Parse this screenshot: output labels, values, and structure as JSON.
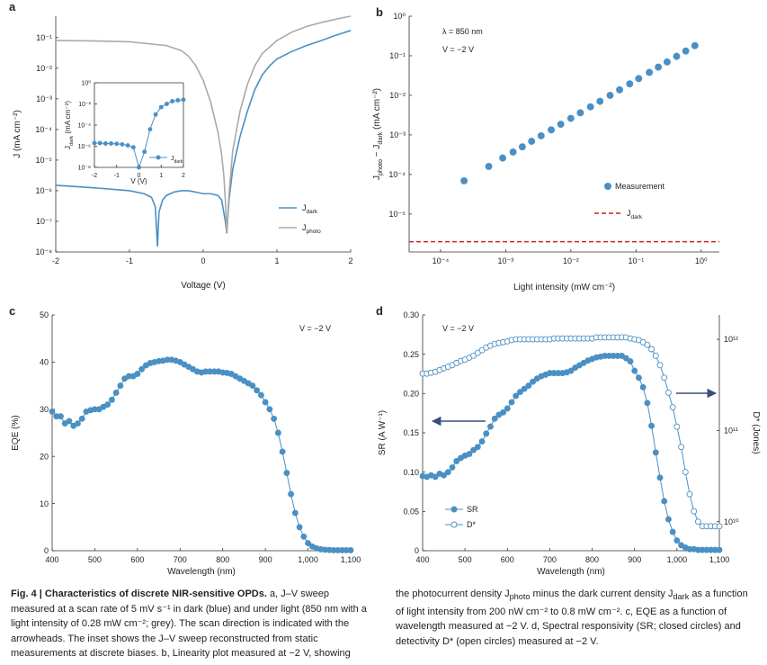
{
  "chart_data": [
    {
      "type": "line",
      "panel_label": "a",
      "xlabel": "Voltage (V)",
      "ylabel": "J (mA cm⁻²)",
      "xlim": [
        -2,
        2
      ],
      "xticks": [
        -2,
        -1,
        0,
        1,
        2
      ],
      "yscale": "log",
      "ylim": [
        1e-08,
        0.5
      ],
      "yticks": [
        {
          "value": 1e-08,
          "label": "10⁻⁸"
        },
        {
          "value": 1e-07,
          "label": "10⁻⁷"
        },
        {
          "value": 1e-06,
          "label": "10⁻⁶"
        },
        {
          "value": 1e-05,
          "label": "10⁻⁵"
        },
        {
          "value": 0.0001,
          "label": "10⁻⁴"
        },
        {
          "value": 0.001,
          "label": "10⁻³"
        },
        {
          "value": 0.01,
          "label": "10⁻²"
        },
        {
          "value": 0.1,
          "label": "10⁻¹"
        }
      ],
      "series": [
        {
          "name": [
            "J",
            "dark"
          ],
          "color": "#4a90c4",
          "x": [
            -2,
            -1.8,
            -1.6,
            -1.4,
            -1.2,
            -1,
            -0.8,
            -0.7,
            -0.65,
            -0.62,
            -0.6,
            -0.55,
            -0.5,
            -0.4,
            -0.3,
            -0.2,
            -0.1,
            0,
            0.1,
            0.2,
            0.25,
            0.3,
            0.32,
            0.35,
            0.4,
            0.5,
            0.6,
            0.7,
            0.8,
            0.9,
            1,
            1.2,
            1.4,
            1.6,
            1.8,
            2
          ],
          "values": [
            1.5e-06,
            1.4e-06,
            1.3e-06,
            1.2e-06,
            1.1e-06,
            1e-06,
            8e-07,
            6e-07,
            3e-07,
            1.5e-08,
            2e-07,
            5e-07,
            7e-07,
            9e-07,
            1e-06,
            1e-06,
            9e-07,
            8e-07,
            8e-07,
            7e-07,
            5e-07,
            1e-07,
            4e-08,
            5e-07,
            5e-06,
            6e-05,
            0.0004,
            0.002,
            0.006,
            0.012,
            0.02,
            0.035,
            0.055,
            0.08,
            0.12,
            0.17
          ]
        },
        {
          "name": [
            "J",
            "photo"
          ],
          "color": "#aaaaaa",
          "x": [
            -2,
            -1.5,
            -1,
            -0.5,
            -0.3,
            -0.2,
            -0.1,
            0,
            0.1,
            0.2,
            0.25,
            0.28,
            0.3,
            0.32,
            0.35,
            0.4,
            0.5,
            0.6,
            0.7,
            0.8,
            1,
            1.2,
            1.4,
            1.6,
            1.8,
            2
          ],
          "values": [
            0.08,
            0.078,
            0.073,
            0.055,
            0.038,
            0.025,
            0.012,
            0.004,
            0.0008,
            8e-05,
            1.5e-05,
            3e-06,
            5e-07,
            4e-08,
            8e-07,
            2e-05,
            0.0004,
            0.003,
            0.012,
            0.03,
            0.08,
            0.15,
            0.23,
            0.31,
            0.4,
            0.5
          ]
        }
      ]
    },
    {
      "type": "line",
      "xlabel": "V (V)",
      "ylabel": [
        "J",
        "dark",
        " (mA cm⁻²)"
      ],
      "xlim": [
        -2,
        2
      ],
      "xticks": [
        -2,
        -1,
        0,
        1,
        2
      ],
      "yscale": "log",
      "ylim": [
        1e-08,
        1
      ],
      "yticks": [
        {
          "value": 1e-08,
          "label": "10⁻⁸"
        },
        {
          "value": 1e-06,
          "label": "10⁻⁶"
        },
        {
          "value": 0.0001,
          "label": "10⁻⁴"
        },
        {
          "value": 0.01,
          "label": "10⁻²"
        },
        {
          "value": 1,
          "label": "10⁰"
        }
      ],
      "series": [
        {
          "name": [
            "J",
            "dark"
          ],
          "color": "#4a90c4",
          "marker": "filled",
          "x": [
            -2,
            -1.75,
            -1.5,
            -1.25,
            -1,
            -0.75,
            -0.5,
            -0.25,
            0,
            0.25,
            0.5,
            0.75,
            1,
            1.25,
            1.5,
            1.75,
            2
          ],
          "values": [
            2e-06,
            2e-06,
            1.8e-06,
            1.8e-06,
            1.7e-06,
            1.5e-06,
            1.2e-06,
            8e-07,
            1e-08,
            3e-07,
            4e-05,
            0.001,
            0.005,
            0.01,
            0.018,
            0.022,
            0.025
          ]
        }
      ]
    },
    {
      "type": "scatter",
      "panel_label": "b",
      "annotations": [
        "λ = 850 nm",
        "V = −2 V"
      ],
      "xlabel": "Light intensity (mW cm⁻²)",
      "ylabel": [
        "J",
        "photo",
        " − J",
        "dark",
        " (mA cm⁻²)"
      ],
      "xscale": "log",
      "xlim": [
        3.3e-05,
        1.9
      ],
      "xticks": [
        {
          "value": 0.0001,
          "label": "10⁻⁴"
        },
        {
          "value": 0.001,
          "label": "10⁻³"
        },
        {
          "value": 0.01,
          "label": "10⁻²"
        },
        {
          "value": 0.1,
          "label": "10⁻¹"
        },
        {
          "value": 1,
          "label": "10⁰"
        }
      ],
      "yscale": "log",
      "ylim": [
        1.1e-06,
        1
      ],
      "yticks": [
        {
          "value": 1e-05,
          "label": "10⁻⁵"
        },
        {
          "value": 0.0001,
          "label": "10⁻⁴"
        },
        {
          "value": 0.001,
          "label": "10⁻³"
        },
        {
          "value": 0.01,
          "label": "10⁻²"
        },
        {
          "value": 0.1,
          "label": "10⁻¹"
        },
        {
          "value": 1,
          "label": "10⁰"
        }
      ],
      "series": [
        {
          "name": "Measurement",
          "color": "#4a90c4",
          "marker": "filled",
          "line": false,
          "x": [
            0.00023,
            0.00055,
            0.0009,
            0.0013,
            0.0018,
            0.0025,
            0.0035,
            0.005,
            0.007,
            0.01,
            0.014,
            0.02,
            0.028,
            0.04,
            0.056,
            0.08,
            0.11,
            0.16,
            0.22,
            0.3,
            0.42,
            0.58,
            0.8
          ],
          "values": [
            6.9e-05,
            0.00016,
            0.00026,
            0.00037,
            0.0005,
            0.00069,
            0.00095,
            0.00134,
            0.00186,
            0.00262,
            0.00362,
            0.00512,
            0.00708,
            0.01,
            0.0138,
            0.0195,
            0.0265,
            0.038,
            0.0518,
            0.0698,
            0.0966,
            0.132,
            0.18
          ]
        }
      ],
      "hlines": [
        {
          "name": [
            "J",
            "dark"
          ],
          "value": 2e-06,
          "color": "#cc2222",
          "style": "dashed"
        }
      ]
    },
    {
      "type": "line",
      "panel_label": "c",
      "annotations": [
        "V = −2 V"
      ],
      "xlabel": "Wavelength (nm)",
      "ylabel": "EQE (%)",
      "xlim": [
        400,
        1100
      ],
      "xticks": [
        400,
        500,
        600,
        700,
        800,
        900,
        {
          "value": 1000,
          "label": "1,000"
        },
        {
          "value": 1100,
          "label": "1,100"
        }
      ],
      "ylim": [
        0,
        50
      ],
      "yticks": [
        0,
        10,
        20,
        30,
        40,
        50
      ],
      "x": [
        400,
        410,
        420,
        430,
        440,
        450,
        460,
        470,
        480,
        490,
        500,
        510,
        520,
        530,
        540,
        550,
        560,
        570,
        580,
        590,
        600,
        610,
        620,
        630,
        640,
        650,
        660,
        670,
        680,
        690,
        700,
        710,
        720,
        730,
        740,
        750,
        760,
        770,
        780,
        790,
        800,
        810,
        820,
        830,
        840,
        850,
        860,
        870,
        880,
        890,
        900,
        910,
        920,
        930,
        940,
        950,
        960,
        970,
        980,
        990,
        1000,
        1010,
        1020,
        1030,
        1040,
        1050,
        1060,
        1070,
        1080,
        1090,
        1100
      ],
      "series": [
        {
          "color": "#4a90c4",
          "marker": "filled",
          "values": [
            29.5,
            28.5,
            28.5,
            27,
            27.5,
            26.5,
            27,
            28,
            29.5,
            29.8,
            30,
            30,
            30.5,
            31,
            32,
            33.5,
            35,
            36.5,
            37,
            37,
            37.5,
            38.5,
            39.3,
            39.8,
            40,
            40.2,
            40.3,
            40.5,
            40.5,
            40.3,
            40,
            39.5,
            39,
            38.5,
            38,
            37.8,
            38,
            38,
            38,
            38,
            37.8,
            37.7,
            37.5,
            37,
            36.5,
            36,
            35.5,
            35,
            34,
            33,
            31.5,
            30,
            28,
            25,
            21,
            16.5,
            12,
            8,
            5,
            3,
            1.6,
            0.9,
            0.5,
            0.3,
            0.2,
            0.15,
            0.1,
            0.1,
            0.1,
            0.1,
            0.1
          ]
        }
      ]
    },
    {
      "type": "line",
      "panel_label": "d",
      "annotations": [
        "V = −2 V"
      ],
      "xlabel": "Wavelength (nm)",
      "ylabel": "SR (A W⁻¹)",
      "y2label": "D* (Jones)",
      "xlim": [
        400,
        1100
      ],
      "xticks": [
        400,
        500,
        600,
        700,
        800,
        900,
        {
          "value": 1000,
          "label": "1,000"
        },
        {
          "value": 1100,
          "label": "1,100"
        }
      ],
      "ylim": [
        0,
        0.3
      ],
      "yticks": [
        0,
        0.05,
        {
          "value": 0.1,
          "label": "0.10"
        },
        0.15,
        {
          "value": 0.2,
          "label": "0.20"
        },
        0.25,
        {
          "value": 0.3,
          "label": "0.30"
        }
      ],
      "y2scale": "log",
      "y2lim": [
        4800000000.0,
        1850000000000.0
      ],
      "y2ticks": [
        {
          "value": 10000000000.0,
          "label": "10¹⁰"
        },
        {
          "value": 100000000000.0,
          "label": "10¹¹"
        },
        {
          "value": 1000000000000.0,
          "label": "10¹²"
        }
      ],
      "x": [
        400,
        410,
        420,
        430,
        440,
        450,
        460,
        470,
        480,
        490,
        500,
        510,
        520,
        530,
        540,
        550,
        560,
        570,
        580,
        590,
        600,
        610,
        620,
        630,
        640,
        650,
        660,
        670,
        680,
        690,
        700,
        710,
        720,
        730,
        740,
        750,
        760,
        770,
        780,
        790,
        800,
        810,
        820,
        830,
        840,
        850,
        860,
        870,
        880,
        890,
        900,
        910,
        920,
        930,
        940,
        950,
        960,
        970,
        980,
        990,
        1000,
        1010,
        1020,
        1030,
        1040,
        1050,
        1060,
        1070,
        1080,
        1090,
        1100
      ],
      "series": [
        {
          "name": "SR",
          "color": "#4a90c4",
          "marker": "filled",
          "values": [
            0.095,
            0.094,
            0.096,
            0.094,
            0.098,
            0.096,
            0.1,
            0.106,
            0.114,
            0.118,
            0.121,
            0.123,
            0.128,
            0.132,
            0.139,
            0.149,
            0.158,
            0.168,
            0.173,
            0.176,
            0.181,
            0.189,
            0.197,
            0.202,
            0.206,
            0.21,
            0.215,
            0.219,
            0.222,
            0.224,
            0.226,
            0.226,
            0.226,
            0.226,
            0.227,
            0.229,
            0.233,
            0.236,
            0.239,
            0.242,
            0.244,
            0.246,
            0.247,
            0.248,
            0.248,
            0.248,
            0.248,
            0.248,
            0.245,
            0.241,
            0.229,
            0.22,
            0.208,
            0.188,
            0.159,
            0.125,
            0.093,
            0.063,
            0.04,
            0.024,
            0.013,
            0.007,
            0.004,
            0.002,
            0.002,
            0.001,
            0.001,
            0.001,
            0.001,
            0.001,
            0.001
          ]
        },
        {
          "name": "D*",
          "color": "#4a90c4",
          "marker": "open",
          "axis": "y2",
          "values": [
            420000000000.0,
            420000000000.0,
            430000000000.0,
            440000000000.0,
            460000000000.0,
            480000000000.0,
            500000000000.0,
            520000000000.0,
            550000000000.0,
            580000000000.0,
            600000000000.0,
            630000000000.0,
            660000000000.0,
            710000000000.0,
            760000000000.0,
            810000000000.0,
            850000000000.0,
            890000000000.0,
            910000000000.0,
            930000000000.0,
            950000000000.0,
            980000000000.0,
            1000000000000.0,
            1000000000000.0,
            1000000000000.0,
            1000000000000.0,
            1000000000000.0,
            1000000000000.0,
            1000000000000.0,
            1000000000000.0,
            1000000000000.0,
            1020000000000.0,
            1020000000000.0,
            1020000000000.0,
            1020000000000.0,
            1020000000000.0,
            1020000000000.0,
            1020000000000.0,
            1020000000000.0,
            1020000000000.0,
            1020000000000.0,
            1050000000000.0,
            1050000000000.0,
            1050000000000.0,
            1050000000000.0,
            1050000000000.0,
            1050000000000.0,
            1050000000000.0,
            1050000000000.0,
            1020000000000.0,
            1000000000000.0,
            980000000000.0,
            930000000000.0,
            870000000000.0,
            780000000000.0,
            660000000000.0,
            520000000000.0,
            380000000000.0,
            260000000000.0,
            180000000000.0,
            110000000000.0,
            66000000000.0,
            35000000000.0,
            20000000000.0,
            13000000000.0,
            10000000000.0,
            8900000000.0,
            8900000000.0,
            8900000000.0,
            8900000000.0,
            8900000000.0
          ]
        }
      ]
    }
  ],
  "caption": {
    "title": "Fig. 4 | Characteristics of discrete NIR-sensitive OPDs.",
    "left": " a, J–V sweep measured at a scan rate of 5 mV s⁻¹ in dark (blue) and under light (850 nm with a light intensity of 0.28 mW cm⁻²; grey). The scan direction is indicated with the arrowheads. The inset shows the J–V sweep reconstructed from static measurements at discrete biases. b, Linearity plot measured at −2 V, showing",
    "right": [
      "the photocurrent density J",
      "photo",
      " minus the dark current density J",
      "dark",
      " as a function of light intensity from 200 nW cm⁻² to 0.8 mW cm⁻². c, EQE as a function of wavelength measured at −2 V. d, Spectral responsivity (SR; closed circles) and detectivity D* (open circles) measured at −2 V."
    ]
  }
}
